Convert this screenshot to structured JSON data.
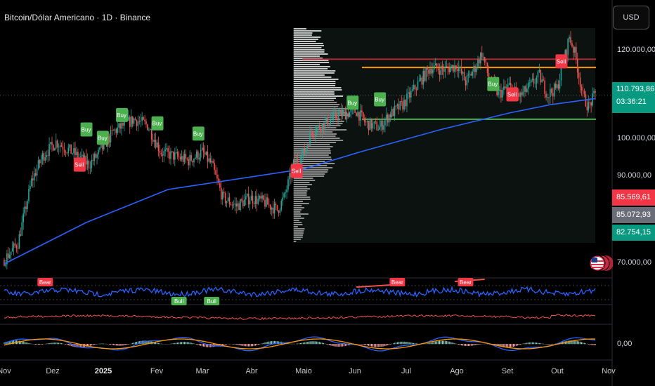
{
  "header": {
    "title": "Bitcoin/Dólar Americano · 1D · Binance",
    "currency_button": "USD"
  },
  "price_axis": {
    "labels": [
      "120.000,00",
      "100.000,00",
      "90.000,00",
      "70.000,00",
      "0,00"
    ]
  },
  "price_tags": {
    "last": "110.793,86",
    "countdown": "03:36:21",
    "red": "85.569,61",
    "gray": "85.072,93",
    "green": "82.754,15"
  },
  "time_axis": [
    "Nov",
    "Dez",
    "2025",
    "Fev",
    "Mar",
    "Abr",
    "Maio",
    "Jun",
    "Jul",
    "Ago",
    "Set",
    "Out",
    "Nov"
  ],
  "colors": {
    "background": "#000000",
    "candle_up": "#26a69a",
    "candle_down": "#ef5350",
    "ma_line": "#2962ff",
    "rsi_line": "#2962ff",
    "level_red": "#b22833",
    "level_orange": "#ff9800",
    "level_green": "#4caf50",
    "last_tag": "#089981",
    "red_tag": "#f23645",
    "gray_tag": "#6a6d78",
    "buy_label": "#4caf50",
    "sell_label": "#f23645"
  },
  "chart_data": {
    "type": "candlestick",
    "x_range": [
      "Nov",
      "Nov"
    ],
    "ylim": [
      70000,
      127000
    ],
    "anchors": [
      [
        0,
        71000
      ],
      [
        10,
        75000
      ],
      [
        20,
        90000
      ],
      [
        28,
        96000
      ],
      [
        38,
        99500
      ],
      [
        50,
        97000
      ],
      [
        62,
        94000
      ],
      [
        70,
        97000
      ],
      [
        80,
        102000
      ],
      [
        95,
        105000
      ],
      [
        105,
        103500
      ],
      [
        115,
        97000
      ],
      [
        125,
        96000
      ],
      [
        135,
        95000
      ],
      [
        145,
        97000
      ],
      [
        152,
        94000
      ],
      [
        160,
        86000
      ],
      [
        170,
        84000
      ],
      [
        180,
        86000
      ],
      [
        190,
        85000
      ],
      [
        200,
        83000
      ],
      [
        205,
        86000
      ],
      [
        212,
        94000
      ],
      [
        220,
        97000
      ],
      [
        225,
        102000
      ],
      [
        235,
        104000
      ],
      [
        245,
        106000
      ],
      [
        258,
        107000
      ],
      [
        265,
        104000
      ],
      [
        275,
        103000
      ],
      [
        282,
        106000
      ],
      [
        292,
        108500
      ],
      [
        302,
        113000
      ],
      [
        312,
        117500
      ],
      [
        322,
        117000
      ],
      [
        332,
        118000
      ],
      [
        338,
        114000
      ],
      [
        345,
        117500
      ],
      [
        350,
        121000
      ],
      [
        355,
        115000
      ],
      [
        362,
        111000
      ],
      [
        370,
        113000
      ],
      [
        378,
        110500
      ],
      [
        385,
        113000
      ],
      [
        392,
        115500
      ],
      [
        398,
        111000
      ],
      [
        405,
        112500
      ],
      [
        410,
        119000
      ],
      [
        414,
        125000
      ],
      [
        418,
        121000
      ],
      [
        424,
        110500
      ],
      [
        428,
        108000
      ],
      [
        433,
        111000
      ]
    ],
    "moving_average": [
      [
        0,
        70000
      ],
      [
        60,
        80000
      ],
      [
        120,
        88000
      ],
      [
        180,
        91000
      ],
      [
        220,
        93000
      ],
      [
        260,
        97000
      ],
      [
        320,
        102500
      ],
      [
        370,
        106500
      ],
      [
        400,
        108500
      ],
      [
        433,
        110000
      ]
    ],
    "horizontal_levels": [
      {
        "price": 119500,
        "color": "red"
      },
      {
        "price": 117500,
        "color": "orange"
      },
      {
        "price": 105000,
        "color": "green"
      }
    ],
    "labels": [
      {
        "text": "Buy",
        "kind": "buy",
        "day": 60,
        "price": 102500
      },
      {
        "text": "Buy",
        "kind": "buy",
        "day": 72,
        "price": 100500
      },
      {
        "text": "Sell",
        "kind": "sell",
        "day": 55,
        "price": 94000
      },
      {
        "text": "Buy",
        "kind": "buy",
        "day": 86,
        "price": 106000
      },
      {
        "text": "Buy",
        "kind": "buy",
        "day": 112,
        "price": 104000
      },
      {
        "text": "Buy",
        "kind": "buy",
        "day": 142,
        "price": 101500
      },
      {
        "text": "Sell",
        "kind": "sell",
        "day": 214,
        "price": 92500
      },
      {
        "text": "Buy",
        "kind": "buy",
        "day": 255,
        "price": 109000
      },
      {
        "text": "Buy",
        "kind": "buy",
        "day": 275,
        "price": 109800
      },
      {
        "text": "Buy",
        "kind": "buy",
        "day": 358,
        "price": 113500
      },
      {
        "text": "Sell",
        "kind": "sell",
        "day": 372,
        "price": 111000
      },
      {
        "text": "Sell",
        "kind": "sell",
        "day": 408,
        "price": 119000
      }
    ],
    "rsi_labels": [
      {
        "text": "Bear",
        "kind": "sell",
        "day": 30
      },
      {
        "text": "Bear",
        "kind": "sell",
        "day": 288
      },
      {
        "text": "Bear",
        "kind": "sell",
        "day": 338
      },
      {
        "text": "Bull",
        "kind": "buy",
        "day": 128
      },
      {
        "text": "Bull",
        "kind": "buy",
        "day": 152
      }
    ]
  }
}
